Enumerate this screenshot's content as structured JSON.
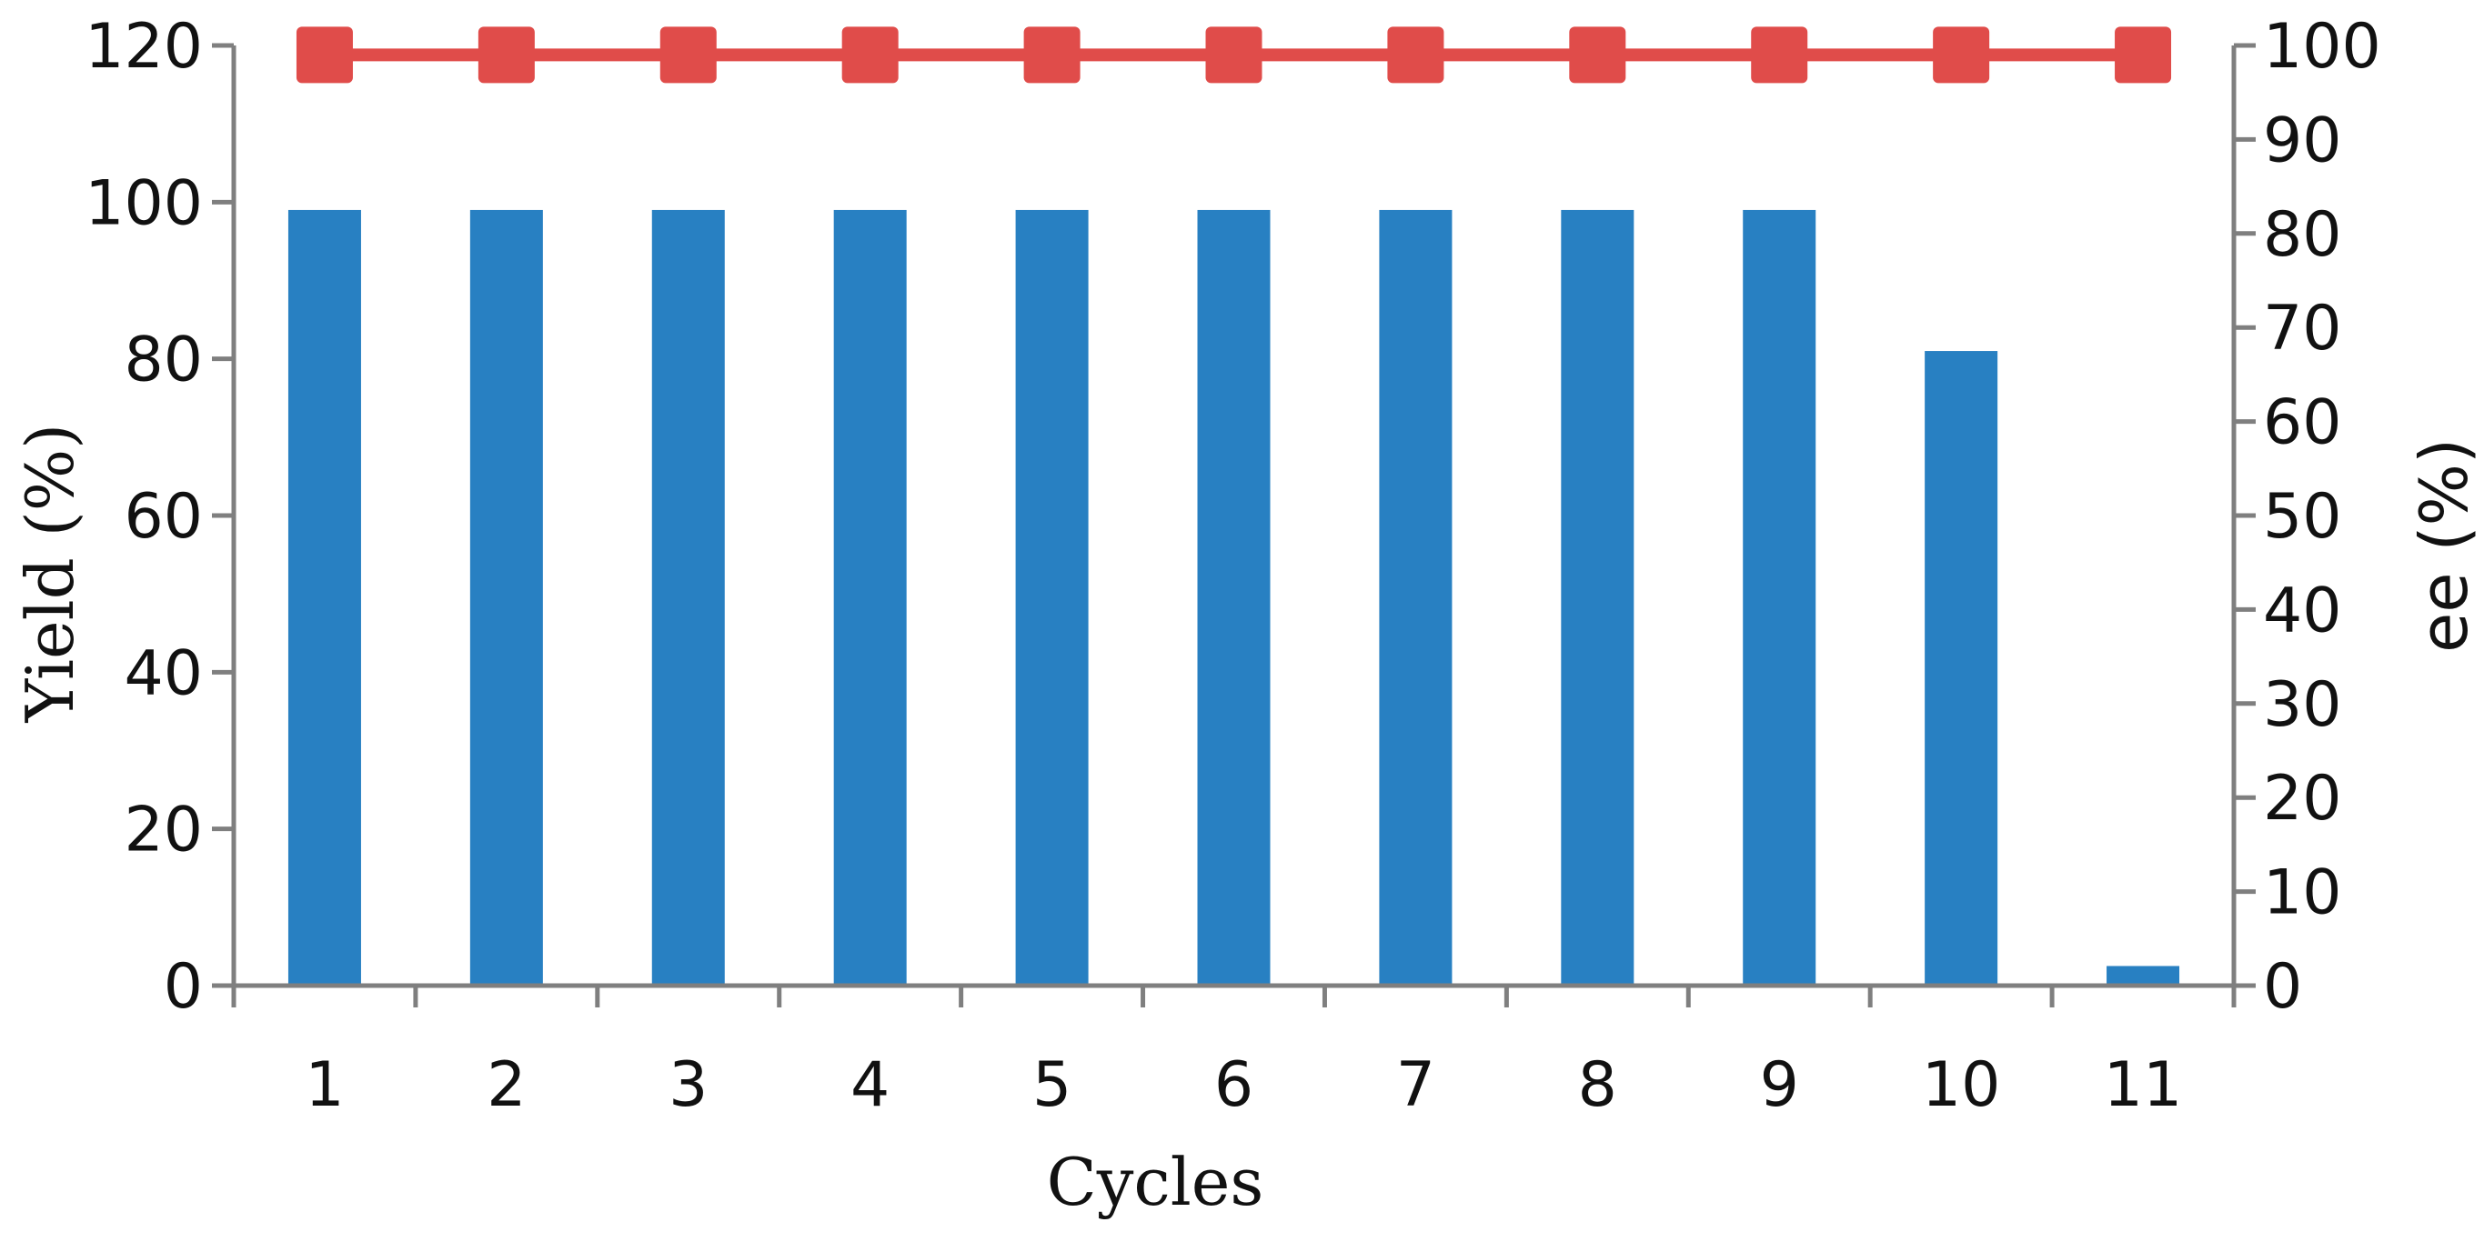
{
  "chart_data": {
    "type": "bar",
    "categories": [
      "1",
      "2",
      "3",
      "4",
      "5",
      "6",
      "7",
      "8",
      "9",
      "10",
      "11"
    ],
    "series": [
      {
        "type": "bar",
        "axis": "left",
        "color": "#2880C2",
        "values": [
          99,
          99,
          99,
          99,
          99,
          99,
          99,
          99,
          99,
          81,
          2.5
        ]
      },
      {
        "type": "line",
        "axis": "right",
        "color": "#E04C4A",
        "marker": "square",
        "values": [
          99,
          99,
          99,
          99,
          99,
          99,
          99,
          99,
          99,
          99,
          99
        ]
      }
    ],
    "xlabel": "Cycles",
    "ylabel": "Yield (%)",
    "y2label": "ee (%)",
    "ylim": [
      0,
      120
    ],
    "y2lim": [
      0,
      100
    ],
    "yticks": [
      "0",
      "20",
      "40",
      "60",
      "80",
      "100",
      "120"
    ],
    "y2ticks": [
      "0",
      "10",
      "20",
      "30",
      "40",
      "50",
      "60",
      "70",
      "80",
      "90",
      "100"
    ],
    "grid": false,
    "legend": "none"
  }
}
